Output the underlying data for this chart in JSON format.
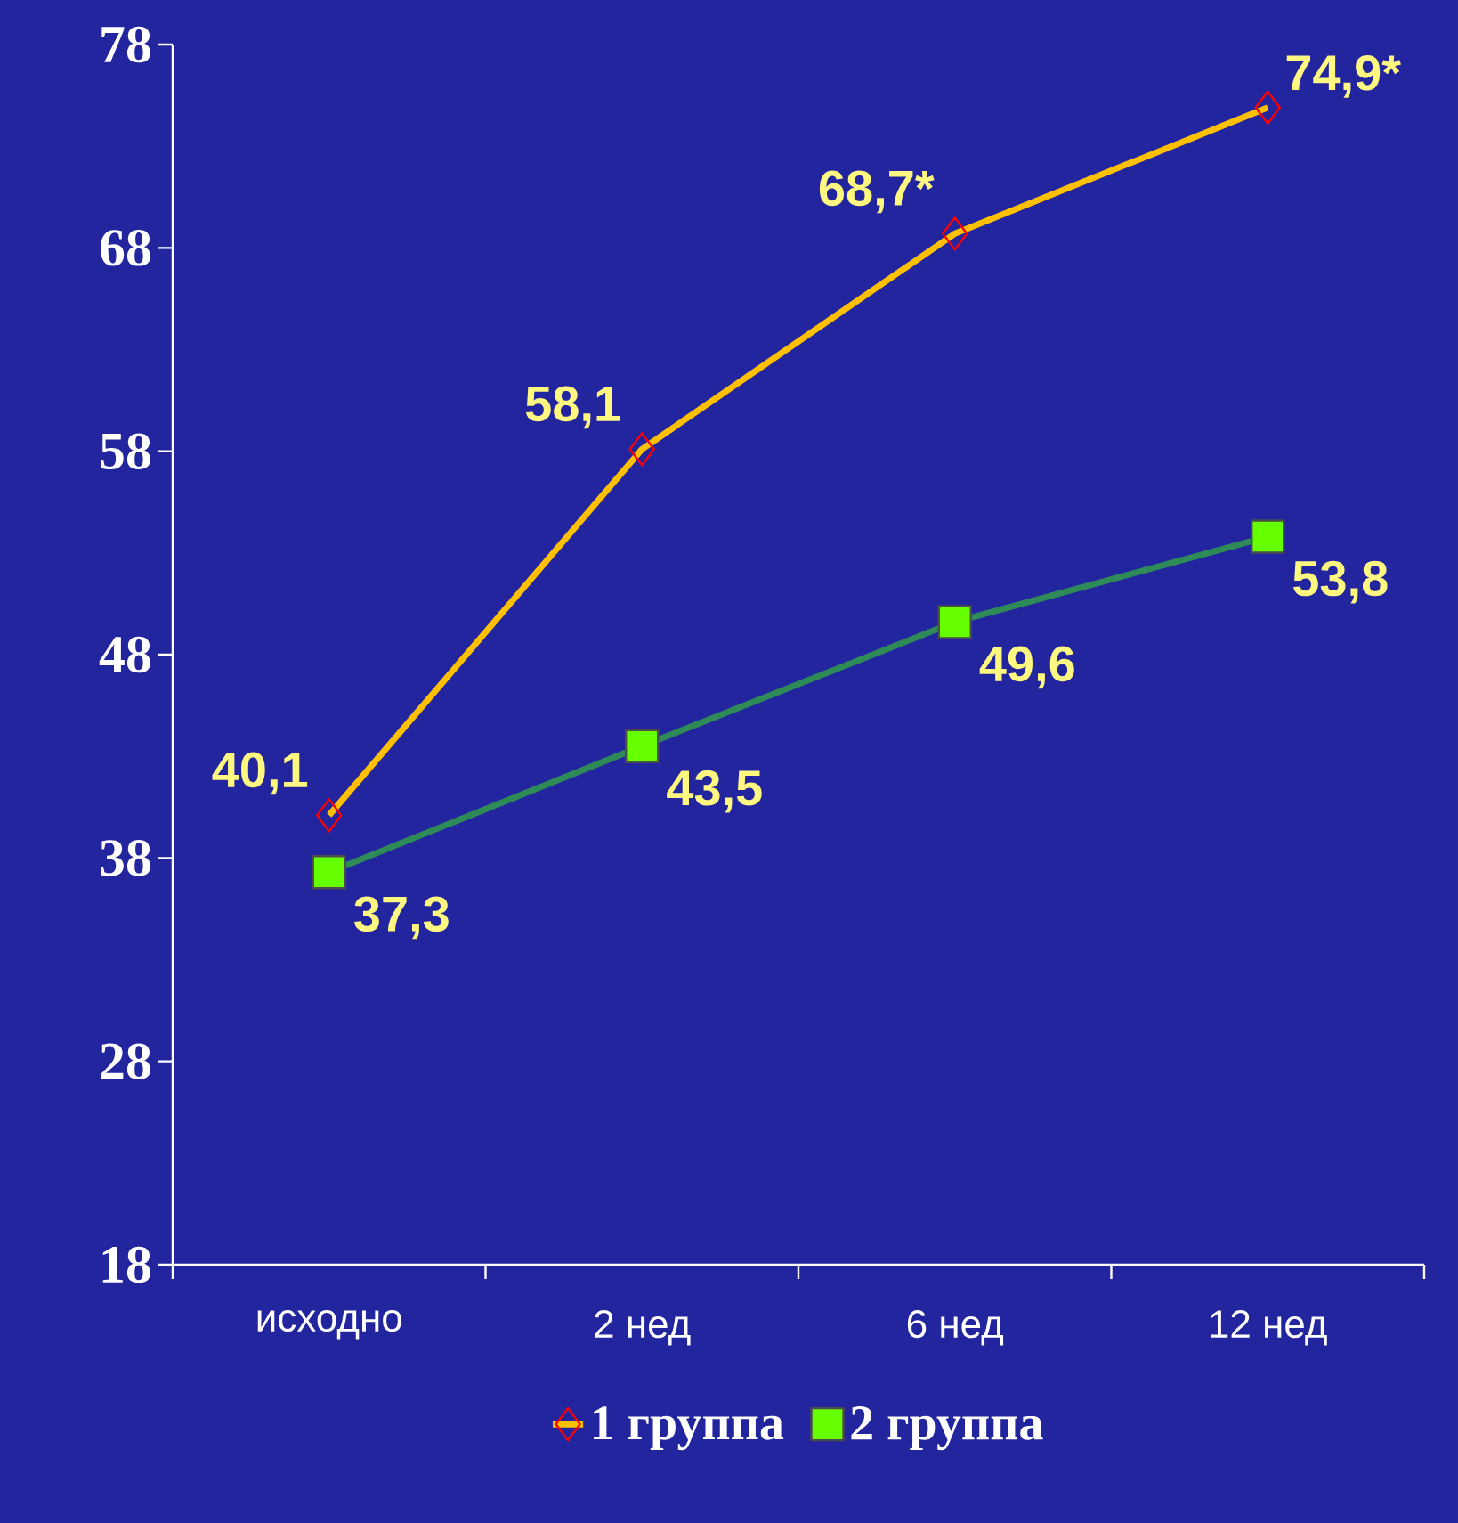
{
  "chart_data": {
    "type": "line",
    "categories": [
      "исходно",
      "2 нед",
      "6 нед",
      "12 нед"
    ],
    "series": [
      {
        "name": "1 группа",
        "color": "#ffc000",
        "marker": "diamond",
        "values": [
          40.1,
          58.1,
          68.7,
          74.9
        ],
        "value_labels": [
          "40,1",
          "58,1",
          "68,7*",
          "74,9*"
        ]
      },
      {
        "name": "2 группа",
        "color": "#2e8b57",
        "marker": "square",
        "values": [
          37.3,
          43.5,
          49.6,
          53.8
        ],
        "value_labels": [
          "37,3",
          "43,5",
          "49,6",
          "53,8"
        ]
      }
    ],
    "ylim": [
      18,
      78
    ],
    "yticks": [
      18,
      28,
      38,
      48,
      58,
      68,
      78
    ],
    "grid": false,
    "legend": "bottom",
    "line_style": "solid"
  }
}
